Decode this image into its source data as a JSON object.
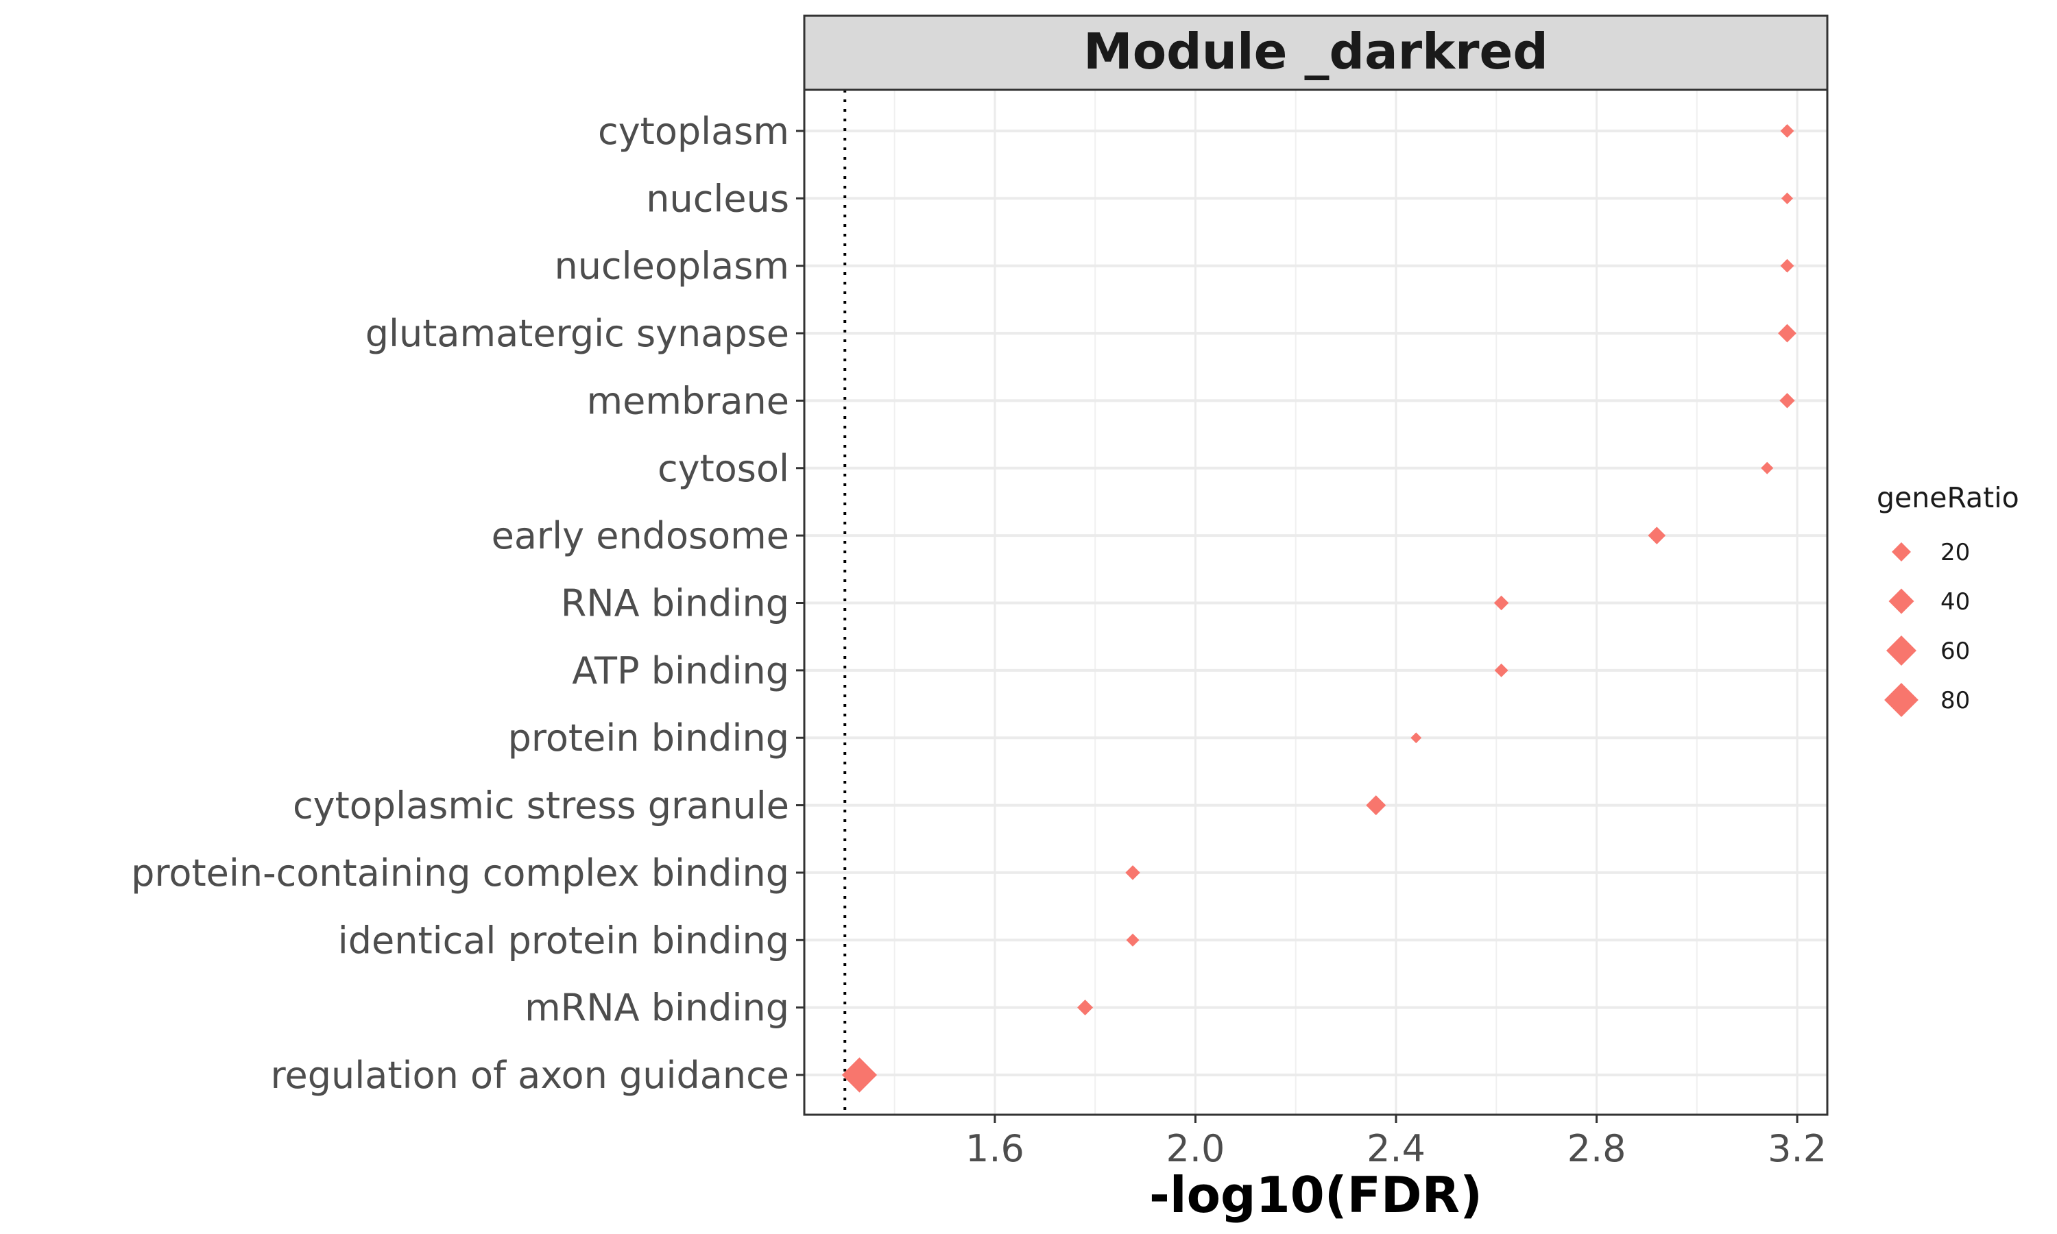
{
  "chart_data": {
    "type": "scatter",
    "title": "Module _darkred",
    "xlabel": "-log10(FDR)",
    "ylabel": "",
    "xlim": [
      1.22,
      3.26
    ],
    "x_ticks": [
      {
        "value": 1.6,
        "label": "1.6"
      },
      {
        "value": 2.0,
        "label": "2.0"
      },
      {
        "value": 2.4,
        "label": "2.4"
      },
      {
        "value": 2.8,
        "label": "2.8"
      },
      {
        "value": 3.2,
        "label": "3.2"
      }
    ],
    "x_minor": [
      1.4,
      1.8,
      2.2,
      2.6,
      3.0
    ],
    "reference_line": {
      "x": 1.301,
      "style": "dotted"
    },
    "marker": "diamond",
    "color": "#F8766D",
    "grid": true,
    "categories": [
      "cytoplasm",
      "nucleus",
      "nucleoplasm",
      "glutamatergic synapse",
      "membrane",
      "cytosol",
      "early endosome",
      "RNA binding",
      "ATP binding",
      "protein binding",
      "cytoplasmic stress granule",
      "protein-containing complex binding",
      "identical protein binding",
      "mRNA binding",
      "regulation of axon guidance"
    ],
    "series": [
      {
        "values": [
          3.18,
          3.18,
          3.18,
          3.18,
          3.18,
          3.14,
          2.92,
          2.61,
          2.61,
          2.44,
          2.36,
          1.875,
          1.875,
          1.78,
          1.33
        ],
        "geneRatio": [
          8,
          5,
          8,
          18,
          11,
          6,
          16,
          10,
          8,
          4,
          22,
          10,
          7,
          12,
          85
        ]
      }
    ],
    "legend": {
      "title": "geneRatio",
      "position": "right",
      "entries": [
        {
          "value": 20,
          "label": "20"
        },
        {
          "value": 40,
          "label": "40"
        },
        {
          "value": 60,
          "label": "60"
        },
        {
          "value": 80,
          "label": "80"
        }
      ]
    }
  }
}
